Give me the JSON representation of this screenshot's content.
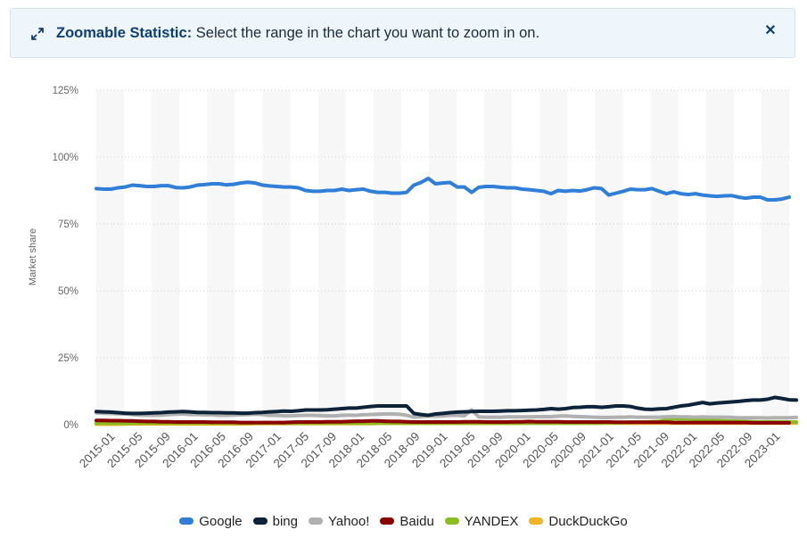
{
  "banner": {
    "title": "Zoomable Statistic:",
    "message": "Select the range in the chart you want to zoom in on.",
    "close_icon": "close-icon",
    "expand_icon": "expand-arrows-icon"
  },
  "chart_data": {
    "type": "line",
    "ylabel": "Market share",
    "y_ticks": [
      "0%",
      "25%",
      "50%",
      "75%",
      "100%",
      "125%"
    ],
    "ylim": [
      0,
      125
    ],
    "x_tick_labels": [
      "2015-01",
      "2015-05",
      "2015-09",
      "2016-01",
      "2016-05",
      "2016-09",
      "2017-01",
      "2017-05",
      "2017-09",
      "2018-01",
      "2018-05",
      "2018-09",
      "2019-01",
      "2019-05",
      "2019-09",
      "2020-01",
      "2020-05",
      "2020-09",
      "2021-01",
      "2021-05",
      "2021-09",
      "2022-01",
      "2022-05",
      "2022-09",
      "2023-01"
    ],
    "grid": "horizontal dotted, alternating vertical bands",
    "legend_position": "bottom",
    "series": [
      {
        "name": "Google",
        "color": "#2f7ed8",
        "values": [
          88.2,
          88,
          88,
          88.5,
          88.8,
          89.5,
          89.3,
          89,
          89,
          89.3,
          89.3,
          88.6,
          88.5,
          88.8,
          89.5,
          89.7,
          90,
          90,
          89.6,
          89.8,
          90.3,
          90.6,
          90.3,
          89.5,
          89.2,
          89,
          88.8,
          88.8,
          88.5,
          87.5,
          87.2,
          87.2,
          87.5,
          87.5,
          88,
          87.5,
          87.8,
          88,
          87.2,
          86.8,
          86.8,
          86.5,
          86.5,
          86.8,
          89.5,
          90.5,
          92,
          90,
          90.3,
          90.5,
          88.8,
          88.8,
          86.8,
          88.7,
          89,
          89,
          88.7,
          88.5,
          88.5,
          88,
          87.8,
          87.5,
          87.2,
          86.3,
          87.5,
          87.2,
          87.5,
          87.3,
          87.8,
          88.5,
          88.2,
          85.8,
          86.5,
          87.2,
          88,
          87.8,
          87.8,
          88.2,
          87.2,
          86.3,
          87,
          86.3,
          86,
          86.3,
          85.8,
          85.5,
          85.3,
          85.5,
          85.6,
          85,
          84.6,
          85,
          85,
          84,
          84,
          84.3,
          85
        ]
      },
      {
        "name": "bing",
        "color": "#0d233a",
        "values": [
          4.9,
          4.8,
          4.7,
          4.5,
          4.3,
          4.2,
          4.2,
          4.3,
          4.4,
          4.5,
          4.7,
          4.8,
          4.9,
          4.8,
          4.6,
          4.6,
          4.5,
          4.5,
          4.4,
          4.4,
          4.3,
          4.3,
          4.5,
          4.6,
          4.8,
          4.9,
          5.1,
          5,
          5.2,
          5.5,
          5.5,
          5.5,
          5.6,
          5.8,
          6,
          6.2,
          6.2,
          6.5,
          6.8,
          7,
          7,
          7,
          7,
          7,
          4.2,
          3.8,
          3.5,
          4,
          4.2,
          4.5,
          4.7,
          4.8,
          4.9,
          5,
          5,
          5,
          5.1,
          5.2,
          5.2,
          5.3,
          5.4,
          5.5,
          5.7,
          6,
          5.8,
          6,
          6.4,
          6.5,
          6.7,
          6.7,
          6.5,
          6.7,
          7,
          7,
          6.8,
          6.2,
          5.8,
          5.7,
          5.9,
          6,
          6.5,
          7,
          7.3,
          7.8,
          8.3,
          7.8,
          8.1,
          8.3,
          8.5,
          8.7,
          9,
          9.2,
          9.2,
          9.5,
          10.2,
          9.8,
          9.3,
          9.2
        ]
      },
      {
        "name": "Yahoo!",
        "color": "#b0b0b0",
        "values": [
          4.4,
          4.3,
          4.2,
          4.1,
          4,
          3.8,
          3.6,
          3.5,
          3.5,
          3.6,
          3.8,
          3.9,
          4,
          3.8,
          3.8,
          3.7,
          3.7,
          3.5,
          3.5,
          3.6,
          3.7,
          3.8,
          3.9,
          3.8,
          3.5,
          3.5,
          3.3,
          3.3,
          3.4,
          3.5,
          3.5,
          3.4,
          3.3,
          3.3,
          3.5,
          3.6,
          3.5,
          3.7,
          3.8,
          3.9,
          4,
          4,
          3.9,
          3.5,
          2.8,
          3,
          3.2,
          3.2,
          3.3,
          3.5,
          3.5,
          3.3,
          5.5,
          2.9,
          2.8,
          2.8,
          2.8,
          2.9,
          2.9,
          2.9,
          2.9,
          3,
          3,
          3,
          3.2,
          3.3,
          3.1,
          3,
          2.9,
          2.8,
          2.7,
          2.7,
          2.8,
          2.8,
          2.9,
          2.8,
          2.8,
          2.8,
          2.8,
          2.9,
          3,
          2.9,
          2.9,
          2.8,
          2.9,
          2.8,
          2.8,
          2.8,
          2.7,
          2.6,
          2.6,
          2.6,
          2.6,
          2.5,
          2.6,
          2.6,
          2.6,
          2.7
        ]
      },
      {
        "name": "Baidu",
        "color": "#8b0000",
        "values": [
          1.6,
          1.6,
          1.5,
          1.5,
          1.4,
          1.4,
          1.3,
          1.2,
          1.2,
          1.1,
          1.1,
          1,
          1,
          1,
          1,
          1,
          0.9,
          0.9,
          0.9,
          0.9,
          0.8,
          0.8,
          0.8,
          0.8,
          0.8,
          0.8,
          0.8,
          0.9,
          1,
          1,
          1,
          1,
          1.1,
          1.1,
          1.1,
          1.2,
          1.3,
          1.3,
          1.4,
          1.4,
          1.3,
          1.2,
          1.2,
          1.1,
          1,
          1,
          1,
          1,
          1,
          1,
          1,
          1.1,
          1.1,
          1.1,
          1,
          1,
          1,
          1,
          1.1,
          1.1,
          1.2,
          1.1,
          1.1,
          1.1,
          1.1,
          1,
          1,
          1,
          1,
          1,
          1,
          1,
          0.9,
          0.9,
          0.9,
          0.9,
          0.9,
          0.9,
          0.9,
          0.9,
          0.8,
          0.8,
          0.8,
          0.8,
          0.8,
          0.8,
          0.8,
          0.8,
          0.8,
          0.8,
          0.8,
          0.7,
          0.7,
          0.7,
          0.7,
          0.7,
          0.7
        ]
      },
      {
        "name": "YANDEX",
        "color": "#8bbc21",
        "values": [
          0.5,
          0.5,
          0.5,
          0.5,
          0.5,
          0.5,
          0.6,
          0.6,
          0.6,
          0.6,
          0.6,
          0.6,
          0.6,
          0.6,
          0.6,
          0.6,
          0.6,
          0.6,
          0.6,
          0.6,
          0.6,
          0.6,
          0.6,
          0.6,
          0.6,
          0.6,
          0.6,
          0.6,
          0.6,
          0.6,
          0.6,
          0.6,
          0.6,
          0.6,
          0.6,
          0.6,
          0.6,
          0.6,
          0.6,
          0.6,
          0.6,
          0.6,
          0.6,
          0.6,
          0.6,
          0.6,
          0.6,
          0.6,
          0.6,
          0.6,
          0.6,
          0.6,
          0.6,
          0.6,
          0.6,
          0.6,
          0.6,
          0.6,
          0.6,
          0.6,
          0.6,
          0.6,
          0.6,
          0.6,
          0.6,
          0.6,
          0.6,
          0.6,
          0.6,
          0.6,
          0.6,
          0.7,
          0.7,
          0.8,
          0.9,
          1,
          1,
          1.1,
          1.2,
          1.8,
          2.3,
          2.2,
          2.2,
          2,
          1.7,
          1.6,
          1.5,
          1.4,
          1.3,
          1.3,
          1.2,
          1.1,
          1,
          1,
          1,
          1,
          1,
          1
        ]
      },
      {
        "name": "DuckDuckGo",
        "color": "#f0b323",
        "values": [
          0.2,
          0.2,
          0.2,
          0.2,
          0.3,
          0.3,
          0.3,
          0.3,
          0.3,
          0.3,
          0.3,
          0.3,
          0.3,
          0.3,
          0.3,
          0.3,
          0.3,
          0.3,
          0.3,
          0.3,
          0.3,
          0.3,
          0.4,
          0.4,
          0.4,
          0.4,
          0.4,
          0.4,
          0.4,
          0.4,
          0.4,
          0.4,
          0.4,
          0.4,
          0.4,
          0.4,
          0.4,
          0.4,
          0.4,
          0.5,
          0.5,
          0.5,
          0.5,
          0.5,
          0.5,
          0.5,
          0.5,
          0.5,
          0.5,
          0.5,
          0.5,
          0.5,
          0.5,
          0.5,
          0.5,
          0.5,
          0.5,
          0.5,
          0.5,
          0.6,
          0.6,
          0.6,
          0.6,
          0.6,
          0.6,
          0.6,
          0.6,
          0.6,
          0.6,
          0.6,
          0.6,
          0.6,
          0.6,
          0.6,
          0.6,
          0.6,
          0.6,
          0.6,
          0.6,
          0.6,
          0.6,
          0.6,
          0.6,
          0.6,
          0.6,
          0.6,
          0.6,
          0.6,
          0.6,
          0.6,
          0.6,
          0.6,
          0.6,
          0.6,
          0.6,
          0.6,
          0.6,
          0.6
        ]
      }
    ]
  }
}
